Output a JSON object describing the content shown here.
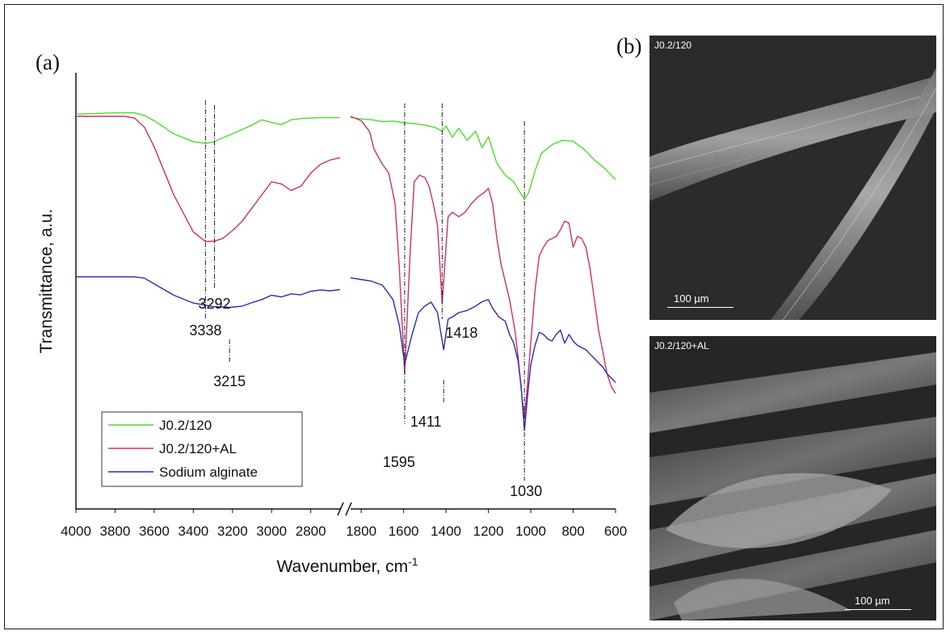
{
  "panel_labels": {
    "a": "(a)",
    "b": "(b)"
  },
  "chart_data": {
    "type": "line",
    "title": "",
    "xlabel": "Wavenumber, cm",
    "xlabel_superscript": "-1",
    "ylabel": "Transmittance, a.u.",
    "x_axis_break": true,
    "x_segments": [
      {
        "xlim": [
          4000,
          2650
        ],
        "ticks": [
          4000,
          3800,
          3600,
          3400,
          3200,
          3000,
          2800
        ]
      },
      {
        "xlim": [
          1850,
          600
        ],
        "ticks": [
          1800,
          1600,
          1400,
          1200,
          1000,
          800,
          600
        ]
      }
    ],
    "ylim": [
      0,
      100
    ],
    "x_reversed": true,
    "legend": {
      "position": "bottom-left",
      "entries": [
        "J0.2/120",
        "J0.2/120+AL",
        "Sodium alginate"
      ]
    },
    "colors": {
      "J0.2/120": "#4ddb2e",
      "J0.2/120+AL": "#c8306e",
      "Sodium alginate": "#2a2db0"
    },
    "series": [
      {
        "name": "J0.2/120",
        "segments": [
          {
            "x": [
              4000,
              3800,
              3700,
              3650,
              3600,
              3500,
              3400,
              3338,
              3300,
              3200,
              3100,
              3050,
              3000,
              2950,
              2900,
              2850,
              2750,
              2650
            ],
            "y": [
              90.5,
              90.8,
              90.8,
              90.2,
              89.0,
              86.0,
              84.2,
              83.8,
              84.1,
              86.0,
              88.0,
              89.2,
              88.6,
              88.1,
              89.2,
              89.5,
              89.7,
              89.7
            ]
          },
          {
            "x": [
              1850,
              1800,
              1750,
              1700,
              1650,
              1595,
              1550,
              1500,
              1450,
              1418,
              1400,
              1370,
              1340,
              1300,
              1260,
              1230,
              1200,
              1160,
              1120,
              1080,
              1050,
              1030,
              1010,
              980,
              950,
              900,
              850,
              800,
              750,
              700,
              650,
              600
            ],
            "y": [
              89.7,
              89.4,
              89.2,
              88.8,
              88.9,
              88.5,
              88.3,
              88.0,
              87.4,
              86.6,
              87.8,
              85.2,
              87.3,
              84.5,
              86.6,
              82.8,
              85.3,
              79.2,
              76.5,
              75.0,
              72.5,
              71.0,
              72.5,
              77.5,
              81.5,
              83.5,
              84.5,
              84.3,
              82.5,
              80.0,
              78.0,
              75.5
            ]
          }
        ]
      },
      {
        "name": "J0.2/120+AL",
        "segments": [
          {
            "x": [
              4000,
              3750,
              3700,
              3650,
              3600,
              3500,
              3400,
              3338,
              3292,
              3250,
              3200,
              3150,
              3100,
              3050,
              3000,
              2950,
              2900,
              2850,
              2800,
              2750,
              2700,
              2650
            ],
            "y": [
              90.0,
              90.0,
              89.6,
              87.5,
              83.0,
              72.0,
              63.5,
              61.3,
              61.4,
              62.0,
              63.8,
              66.0,
              69.0,
              72.0,
              75.0,
              74.5,
              73.0,
              74.0,
              77.0,
              79.0,
              80.0,
              80.5
            ]
          },
          {
            "x": [
              1850,
              1800,
              1760,
              1740,
              1700,
              1670,
              1640,
              1620,
              1595,
              1570,
              1550,
              1525,
              1500,
              1480,
              1460,
              1440,
              1418,
              1400,
              1390,
              1370,
              1340,
              1310,
              1280,
              1250,
              1220,
              1200,
              1180,
              1160,
              1140,
              1120,
              1100,
              1075,
              1060,
              1040,
              1030,
              1020,
              1000,
              980,
              960,
              940,
              920,
              900,
              880,
              860,
              840,
              820,
              800,
              780,
              760,
              740,
              720,
              700,
              680,
              660,
              640,
              620,
              600
            ],
            "y": [
              90.0,
              89.0,
              86.5,
              82.5,
              79.0,
              77.0,
              70.0,
              55.0,
              31.0,
              58.0,
              75.0,
              76.5,
              76.0,
              74.0,
              70.0,
              65.0,
              47.0,
              60.0,
              67.0,
              68.0,
              67.0,
              68.0,
              70.0,
              71.5,
              72.5,
              73.5,
              70.0,
              62.0,
              56.0,
              52.0,
              48.0,
              41.0,
              35.0,
              25.0,
              21.0,
              26.0,
              38.0,
              50.0,
              58.0,
              60.0,
              61.5,
              62.0,
              62.5,
              64.0,
              66.0,
              65.5,
              60.0,
              62.5,
              62.0,
              60.0,
              55.0,
              48.0,
              41.0,
              36.0,
              31.0,
              28.0,
              26.5
            ]
          }
        ]
      },
      {
        "name": "Sodium alginate",
        "segments": [
          {
            "x": [
              4000,
              3700,
              3650,
              3600,
              3500,
              3400,
              3300,
              3215,
              3150,
              3100,
              3050,
              3000,
              2950,
              2900,
              2850,
              2800,
              2750,
              2700,
              2650
            ],
            "y": [
              53.2,
              53.2,
              52.9,
              51.6,
              49.0,
              47.2,
              46.4,
              46.2,
              46.5,
              47.3,
              48.0,
              49.0,
              48.6,
              49.3,
              49.1,
              49.9,
              50.2,
              50.0,
              50.3
            ]
          },
          {
            "x": [
              1850,
              1800,
              1750,
              1700,
              1650,
              1620,
              1595,
              1560,
              1530,
              1500,
              1470,
              1440,
              1411,
              1390,
              1370,
              1340,
              1300,
              1260,
              1230,
              1200,
              1180,
              1150,
              1120,
              1100,
              1080,
              1060,
              1045,
              1030,
              1015,
              1000,
              980,
              960,
              940,
              920,
              900,
              880,
              860,
              840,
              820,
              800,
              780,
              760,
              740,
              720,
              700,
              680,
              660,
              640,
              620,
              600
            ],
            "y": [
              53.0,
              52.6,
              52.2,
              51.3,
              48.0,
              42.0,
              33.2,
              40.0,
              45.0,
              46.5,
              47.4,
              45.0,
              36.5,
              43.5,
              44.0,
              45.0,
              45.5,
              46.5,
              47.5,
              48.0,
              46.0,
              44.0,
              43.0,
              40.0,
              38.0,
              34.0,
              28.0,
              18.0,
              26.0,
              33.0,
              37.5,
              40.5,
              40.0,
              39.0,
              38.5,
              40.0,
              41.0,
              38.0,
              40.0,
              38.5,
              37.5,
              37.0,
              36.5,
              35.5,
              34.5,
              33.5,
              32.5,
              31.0,
              30.0,
              29.0
            ]
          }
        ]
      }
    ],
    "annotations": [
      {
        "text": "3338",
        "x": 3338
      },
      {
        "text": "3292",
        "x": 3292
      },
      {
        "text": "3215",
        "x": 3215
      },
      {
        "text": "1595",
        "x": 1595
      },
      {
        "text": "1418",
        "x": 1418
      },
      {
        "text": "1411",
        "x": 1411
      },
      {
        "text": "1030",
        "x": 1030
      }
    ]
  },
  "sem_images": [
    {
      "label": "J0.2/120",
      "scale": "100 µm"
    },
    {
      "label": "J0.2/120+AL",
      "scale": "100 µm"
    }
  ]
}
